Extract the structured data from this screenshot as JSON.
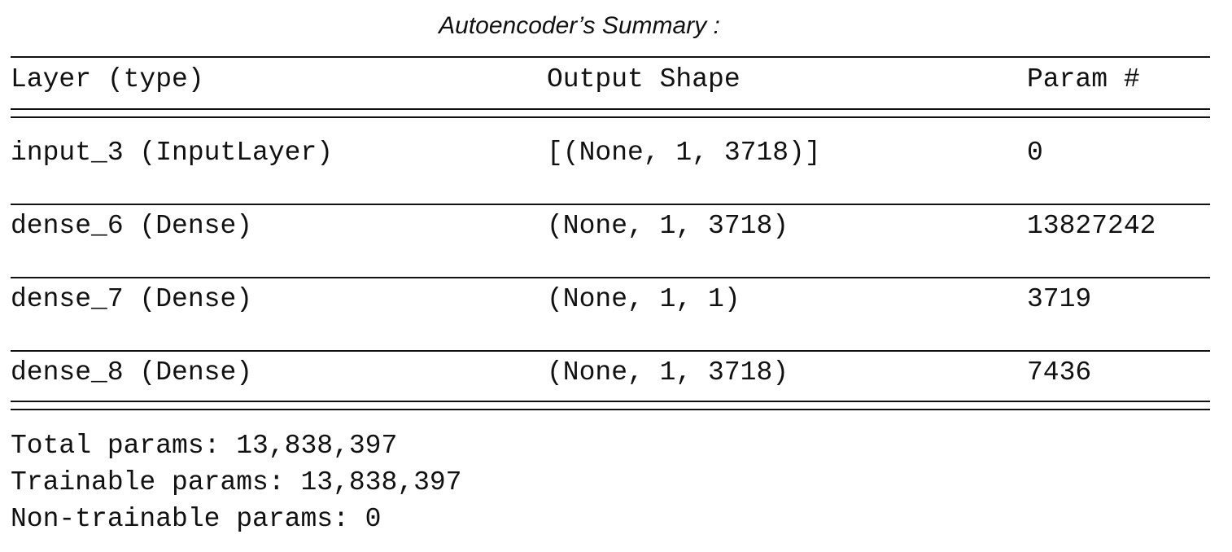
{
  "title": "Autoencoder’s Summary :",
  "headers": {
    "layer": "Layer (type)",
    "output_shape": "Output Shape",
    "params": "Param #"
  },
  "rows": [
    {
      "layer": "input_3 (InputLayer)",
      "output_shape": "[(None, 1, 3718)]",
      "params": "0"
    },
    {
      "layer": "dense_6 (Dense)",
      "output_shape": "(None, 1, 3718)",
      "params": "13827242"
    },
    {
      "layer": "dense_7 (Dense)",
      "output_shape": "(None, 1, 1)",
      "params": "3719"
    },
    {
      "layer": "dense_8 (Dense)",
      "output_shape": "(None, 1, 3718)",
      "params": "7436"
    }
  ],
  "summary": {
    "total": "Total params: 13,838,397",
    "trainable": "Trainable params: 13,838,397",
    "non_trainable": "Non-trainable params: 0"
  }
}
